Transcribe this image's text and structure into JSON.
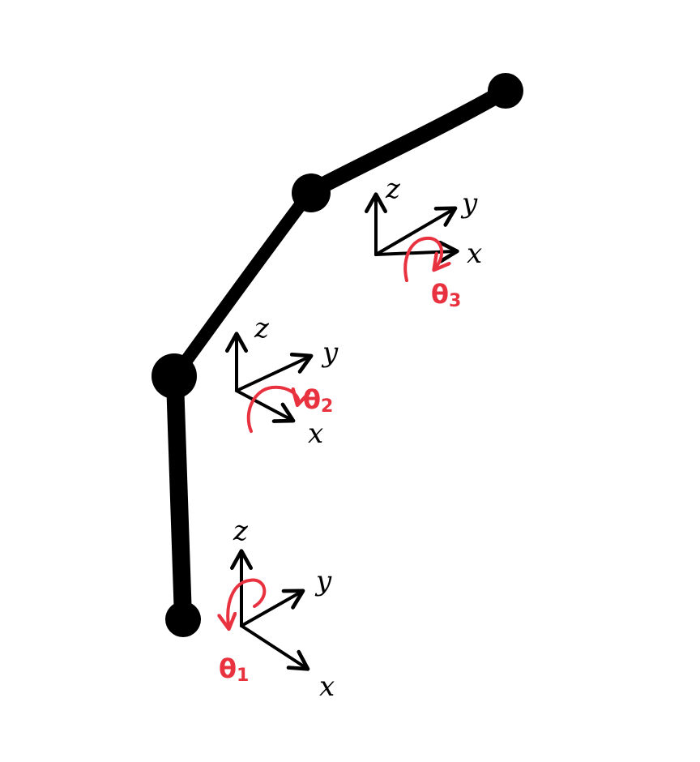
{
  "colors": {
    "link": "#000000",
    "axis": "#000000",
    "rotation": "#e8323f",
    "background": "#ffffff"
  },
  "frames": [
    {
      "id": "frame-1",
      "axes": {
        "z": "z",
        "y": "y",
        "x": "x"
      },
      "rotation": {
        "symbol": "θ",
        "subscript": "1"
      }
    },
    {
      "id": "frame-2",
      "axes": {
        "z": "z",
        "y": "y",
        "x": "x"
      },
      "rotation": {
        "symbol": "θ",
        "subscript": "2"
      }
    },
    {
      "id": "frame-3",
      "axes": {
        "z": "z",
        "y": "y",
        "x": "x"
      },
      "rotation": {
        "symbol": "θ",
        "subscript": "3"
      }
    }
  ]
}
